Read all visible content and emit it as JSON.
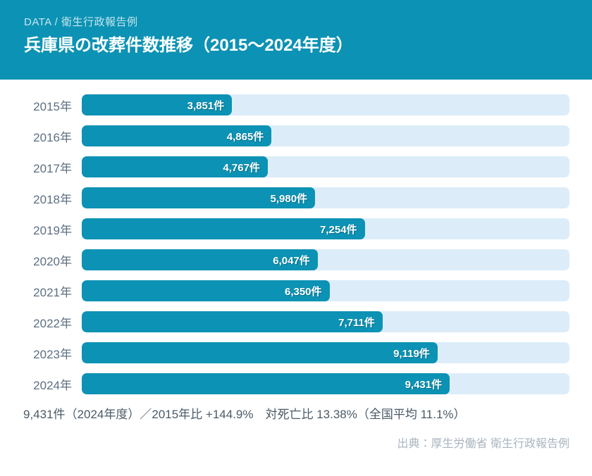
{
  "header": {
    "kicker": "DATA / 衛生行政報告例",
    "title": "兵庫県の改葬件数推移（2015～2024年度）"
  },
  "chart_data": {
    "type": "bar",
    "orientation": "horizontal",
    "title": "兵庫県の改葬件数推移（2015～2024年度）",
    "categories": [
      "2015年",
      "2016年",
      "2017年",
      "2018年",
      "2019年",
      "2020年",
      "2021年",
      "2022年",
      "2023年",
      "2024年"
    ],
    "values": [
      3851,
      4865,
      4767,
      5980,
      7254,
      6047,
      6350,
      7711,
      9119,
      9431
    ],
    "value_labels": [
      "3,851件",
      "4,865件",
      "4,767件",
      "5,980件",
      "7,254件",
      "6,047件",
      "6,350件",
      "7,711件",
      "9,119件",
      "9,431件"
    ],
    "unit": "件",
    "xlim": [
      0,
      12500
    ],
    "grid": false,
    "legend": "none",
    "bar_color": "#0c92b4",
    "track_color": "#dcedf9"
  },
  "summary": "9,431件（2024年度）／2015年比 +144.9%　対死亡比 13.38%（全国平均 11.1%）",
  "source": "出典：厚生労働省 衛生行政報告例",
  "colors": {
    "header_background": "#0c92b4",
    "bar": "#0c92b4",
    "track": "#dcedf9",
    "year_label": "#5d7082",
    "summary_text": "#4b5a66",
    "source_text": "#a9b4bf"
  }
}
